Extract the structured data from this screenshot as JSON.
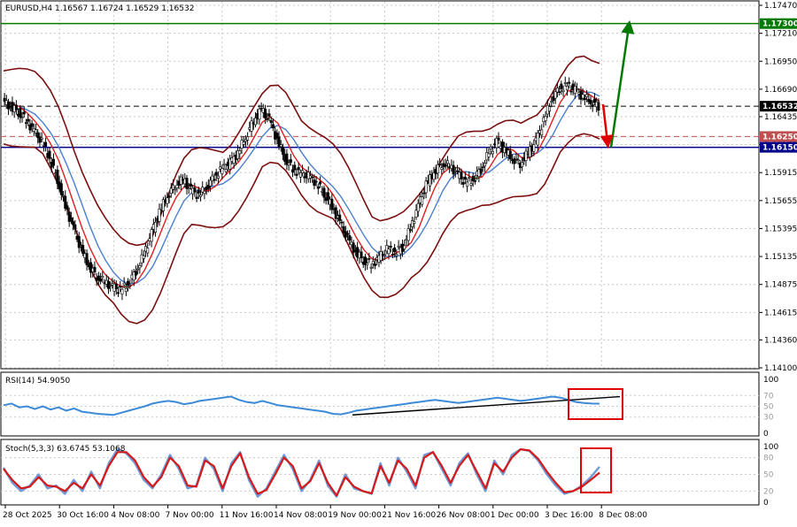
{
  "chart_data": {
    "type": "candlestick",
    "main": {
      "title": "EURUSD,H4  1.16567 1.16724 1.16529 1.16532",
      "y_ticks": [
        "1.17470",
        "1.17210",
        "1.16950",
        "1.16690",
        "1.16435",
        "1.16175",
        "1.15915",
        "1.15655",
        "1.15395",
        "1.15135",
        "1.14875",
        "1.14615",
        "1.14360",
        "1.14100"
      ],
      "ylim": [
        1.141,
        1.1747
      ],
      "levels": [
        {
          "label": "1.17300",
          "value": 1.173,
          "color": "#007a00",
          "style": "solid"
        },
        {
          "label": "1.16532",
          "value": 1.16532,
          "color": "#000000",
          "style": "dashed"
        },
        {
          "label": "1.16250",
          "value": 1.1625,
          "color": "#c05050",
          "style": "dashed"
        },
        {
          "label": "1.16150",
          "value": 1.1615,
          "color": "#00008b",
          "style": "solid"
        }
      ],
      "arrows": [
        {
          "color": "#007a00",
          "from_value": 1.1615,
          "to_value": 1.1727,
          "direction": "up"
        },
        {
          "color": "#e00000",
          "from_value": 1.1655,
          "to_value": 1.162,
          "direction": "down"
        }
      ],
      "close_path": [
        1.1658,
        1.1653,
        1.1648,
        1.164,
        1.163,
        1.162,
        1.1605,
        1.1585,
        1.156,
        1.154,
        1.152,
        1.1505,
        1.1495,
        1.149,
        1.1485,
        1.1482,
        1.1488,
        1.15,
        1.1515,
        1.1535,
        1.1555,
        1.157,
        1.158,
        1.1585,
        1.1575,
        1.157,
        1.1578,
        1.1588,
        1.1595,
        1.16,
        1.161,
        1.1625,
        1.164,
        1.165,
        1.164,
        1.1622,
        1.1605,
        1.1595,
        1.159,
        1.1588,
        1.1582,
        1.1572,
        1.156,
        1.1545,
        1.153,
        1.1518,
        1.151,
        1.1506,
        1.1512,
        1.152,
        1.1518,
        1.1522,
        1.154,
        1.156,
        1.158,
        1.1592,
        1.16,
        1.1598,
        1.159,
        1.1582,
        1.1585,
        1.1595,
        1.161,
        1.162,
        1.1612,
        1.1605,
        1.16,
        1.161,
        1.162,
        1.164,
        1.166,
        1.167,
        1.1672,
        1.1668,
        1.1662,
        1.1658,
        1.1653
      ]
    },
    "rsi": {
      "title": "RSI(14) 54.9050",
      "y_ticks": [
        "100",
        "70",
        "50",
        "30",
        "0"
      ],
      "ylim": [
        0,
        100
      ],
      "values": [
        52,
        55,
        48,
        50,
        45,
        50,
        44,
        48,
        42,
        46,
        40,
        38,
        36,
        35,
        34,
        38,
        42,
        46,
        50,
        55,
        58,
        60,
        58,
        54,
        56,
        60,
        62,
        64,
        66,
        68,
        62,
        58,
        56,
        60,
        56,
        52,
        50,
        48,
        46,
        44,
        42,
        40,
        36,
        35,
        38,
        42,
        44,
        46,
        48,
        50,
        52,
        54,
        56,
        58,
        60,
        62,
        60,
        58,
        56,
        58,
        60,
        62,
        64,
        66,
        64,
        62,
        60,
        62,
        64,
        66,
        68,
        66,
        62,
        58,
        56,
        55,
        54.9
      ]
    },
    "stoch": {
      "title": "Stoch(5,3,3) 63.6745 53.1068",
      "y_ticks": [
        "100",
        "80",
        "50",
        "20",
        "0"
      ],
      "ylim": [
        0,
        100
      ],
      "main_values": [
        62,
        35,
        20,
        30,
        50,
        25,
        30,
        15,
        40,
        20,
        55,
        25,
        70,
        95,
        88,
        70,
        40,
        25,
        50,
        85,
        60,
        25,
        30,
        80,
        60,
        20,
        70,
        90,
        40,
        10,
        25,
        55,
        85,
        60,
        20,
        40,
        75,
        30,
        10,
        50,
        25,
        20,
        15,
        70,
        30,
        80,
        55,
        25,
        85,
        90,
        60,
        30,
        70,
        88,
        50,
        20,
        75,
        50,
        85,
        95,
        92,
        75,
        50,
        30,
        15,
        20,
        30,
        45,
        63.7
      ],
      "signal_values": [
        60,
        40,
        25,
        28,
        45,
        30,
        28,
        20,
        35,
        25,
        50,
        30,
        65,
        90,
        90,
        75,
        45,
        28,
        45,
        80,
        65,
        30,
        28,
        75,
        65,
        25,
        65,
        88,
        45,
        15,
        22,
        50,
        80,
        65,
        25,
        38,
        70,
        35,
        12,
        45,
        28,
        20,
        16,
        65,
        35,
        75,
        60,
        30,
        80,
        90,
        65,
        35,
        65,
        85,
        55,
        25,
        70,
        55,
        80,
        95,
        93,
        78,
        55,
        35,
        18,
        20,
        28,
        40,
        53.1
      ]
    },
    "x_ticks": [
      "28 Oct 2025",
      "30 Oct 16:00",
      "4 Nov 08:00",
      "7 Nov 00:00",
      "11 Nov 16:00",
      "14 Nov 08:00",
      "19 Nov 00:00",
      "21 Nov 16:00",
      "26 Nov 08:00",
      "1 Dec 00:00",
      "3 Dec 16:00",
      "8 Dec 08:00"
    ]
  }
}
